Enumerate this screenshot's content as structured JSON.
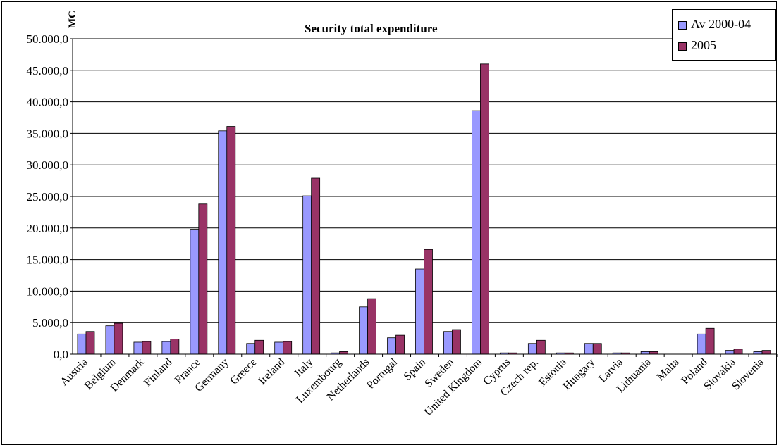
{
  "chart_data": {
    "type": "bar",
    "title": "Security total expenditure",
    "ylabel": "MC",
    "xlabel": "",
    "ylim": [
      0,
      50000
    ],
    "yticks": [
      0,
      5000,
      10000,
      15000,
      20000,
      25000,
      30000,
      35000,
      40000,
      45000,
      50000
    ],
    "ytick_labels": [
      "0,0",
      "5.000,0",
      "10.000,0",
      "15.000,0",
      "20.000,0",
      "25.000,0",
      "30.000,0",
      "35.000,0",
      "40.000,0",
      "45.000,0",
      "50.000,0"
    ],
    "grid": true,
    "legend_position": "top-right",
    "categories": [
      "Austria",
      "Belgium",
      "Denmark",
      "Finland",
      "France",
      "Germany",
      "Greece",
      "Ireland",
      "Italy",
      "Luxembourg",
      "Netherlands",
      "Portugal",
      "Spain",
      "Sweden",
      "United Kingdom",
      "Cyprus",
      "Czech rep.",
      "Estonia",
      "Hungary",
      "Latvia",
      "Lithuania",
      "Malta",
      "Poland",
      "Slovakia",
      "Slovenia"
    ],
    "series": [
      {
        "name": "Av 2000-04",
        "color": "#9999ff",
        "values": [
          3200,
          4500,
          1900,
          2000,
          19800,
          35400,
          1700,
          1900,
          25100,
          200,
          7500,
          2600,
          13500,
          3600,
          38600,
          200,
          1700,
          200,
          1700,
          200,
          400,
          0,
          3200,
          600,
          400
        ]
      },
      {
        "name": "2005",
        "color": "#993366",
        "values": [
          3600,
          4900,
          2000,
          2400,
          23800,
          36100,
          2200,
          2000,
          27900,
          400,
          8800,
          3000,
          16600,
          3900,
          46000,
          200,
          2200,
          200,
          1700,
          200,
          400,
          0,
          4100,
          800,
          600
        ]
      }
    ]
  }
}
